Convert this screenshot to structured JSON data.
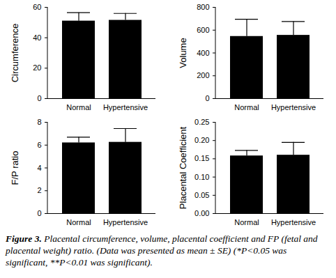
{
  "caption_label": "Figure 3.",
  "caption": "Placental circumference, volume, placental coefficient and FP (fetal and placental weight) ratio. (Data was presented as mean ± SE) (*P<0.05 was significant, **P<0.01 was significant).",
  "chart_data": [
    {
      "type": "bar",
      "y_label": "Circumference",
      "categories": [
        "Normal",
        "Hypertensive"
      ],
      "values": [
        51,
        51.5
      ],
      "errors": [
        5.5,
        4.5
      ],
      "color": "#000000",
      "ylim": [
        0,
        60
      ],
      "yticks": [
        0,
        20,
        40,
        60
      ]
    },
    {
      "type": "bar",
      "y_label": "Volume",
      "categories": [
        "Normal",
        "Hypertensive"
      ],
      "values": [
        545,
        555
      ],
      "errors": [
        150,
        120
      ],
      "color": "#000000",
      "ylim": [
        0,
        800
      ],
      "yticks": [
        0,
        200,
        400,
        600,
        800
      ]
    },
    {
      "type": "bar",
      "y_label": "F/P ratio",
      "categories": [
        "Normal",
        "Hypertensive"
      ],
      "values": [
        6.2,
        6.25
      ],
      "errors": [
        0.5,
        1.2
      ],
      "color": "#000000",
      "ylim": [
        0,
        8
      ],
      "yticks": [
        0,
        2,
        4,
        6,
        8
      ]
    },
    {
      "type": "bar",
      "y_label": "Placental Coefficient",
      "categories": [
        "Normal",
        "Hypertensive"
      ],
      "values": [
        0.158,
        0.16
      ],
      "errors": [
        0.015,
        0.035
      ],
      "color": "#000000",
      "ylim": [
        0,
        0.25
      ],
      "yticks": [
        {
          "value": 0,
          "label": "0.00"
        },
        {
          "value": 0.05,
          "label": "0.05"
        },
        {
          "value": 0.1,
          "label": "0.10"
        },
        {
          "value": 0.15,
          "label": "0.15"
        },
        {
          "value": 0.2,
          "label": "0.20"
        },
        {
          "value": 0.25,
          "label": "0.25"
        }
      ]
    }
  ]
}
